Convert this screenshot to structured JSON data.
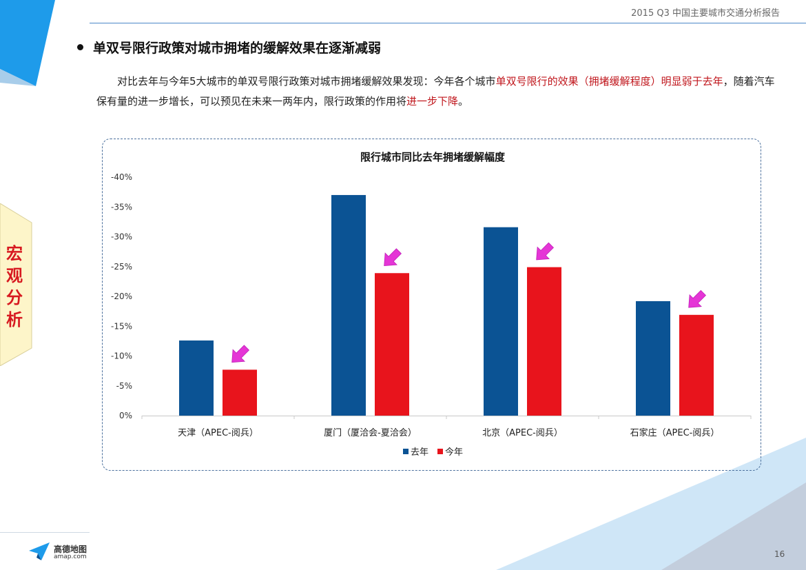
{
  "header": {
    "report_title": "2015 Q3 中国主要城市交通分析报告"
  },
  "headline": "单双号限行政策对城市拥堵的缓解效果在逐渐减弱",
  "paragraph": {
    "part1": "对比去年与今年5大城市的单双号限行政策对城市拥堵缓解效果发现：今年各个城市",
    "hl1": "单双号限行的效果（拥堵缓解程度）明显弱于去年",
    "part2": "，随着汽车保有量的进一步增长，可以预见在未来一两年内，限行政策的作用将",
    "hl2": "进一步下降",
    "part3": "。"
  },
  "side_tab": {
    "label": "宏观分析"
  },
  "colors": {
    "series_last_year": "#0b5394",
    "series_this_year": "#e8141c",
    "arrow": "#e535d6",
    "side_text": "#d71920"
  },
  "chart_data": {
    "type": "bar",
    "title": "限行城市同比去年拥堵缓解幅度",
    "categories": [
      "天津（APEC-阅兵）",
      "厦门（厦洽会-夏洽会）",
      "北京（APEC-阅兵）",
      "石家庄（APEC-阅兵）"
    ],
    "series": [
      {
        "name": "去年",
        "values": [
          -12.6,
          -37.0,
          -31.6,
          -19.2
        ]
      },
      {
        "name": "今年",
        "values": [
          -7.7,
          -23.9,
          -24.9,
          -16.9
        ]
      }
    ],
    "yticks": [
      "-40%",
      "-35%",
      "-30%",
      "-25%",
      "-20%",
      "-15%",
      "-10%",
      "-5%",
      "0%"
    ],
    "ylim": [
      0,
      -40
    ],
    "legend_position": "bottom",
    "grid": false,
    "annotations": "down-arrow-icon above each 今年 bar"
  },
  "footer": {
    "logo_name": "高德地图",
    "logo_sub": "amap.com",
    "page_number": "16"
  }
}
